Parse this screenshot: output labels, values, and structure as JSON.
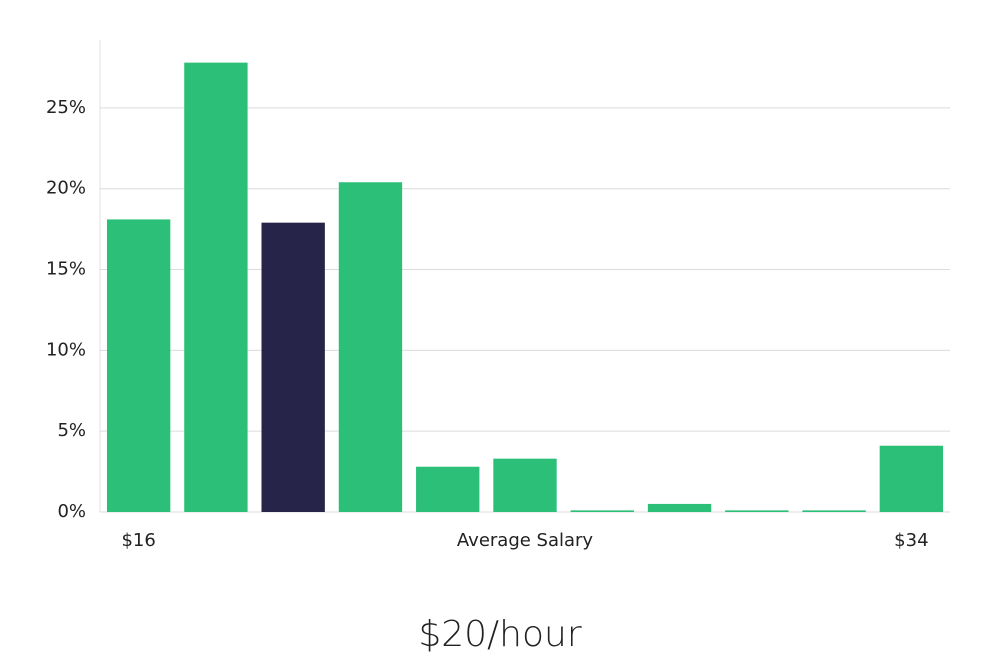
{
  "chart_data": {
    "type": "bar",
    "annotation": "$20/hour",
    "x_label": "Average Salary",
    "categories": [
      "$16",
      null,
      null,
      null,
      null,
      null,
      null,
      null,
      null,
      null,
      "$34"
    ],
    "values": [
      18.1,
      27.8,
      17.9,
      20.4,
      2.8,
      3.3,
      0.1,
      0.5,
      0.1,
      0.1,
      4.1
    ],
    "colors": [
      "#2bbf78",
      "#2bbf78",
      "#27244a",
      "#2bbf78",
      "#2bbf78",
      "#2bbf78",
      "#2bbf78",
      "#2bbf78",
      "#2bbf78",
      "#2bbf78",
      "#2bbf78"
    ],
    "ylim": [
      0,
      29.2
    ],
    "yticks": [
      {
        "value": 0,
        "label": "0%"
      },
      {
        "value": 5,
        "label": "5%"
      },
      {
        "value": 10,
        "label": "10%"
      },
      {
        "value": 15,
        "label": "15%"
      },
      {
        "value": 20,
        "label": "20%"
      },
      {
        "value": 25,
        "label": "25%"
      }
    ],
    "grid": true
  }
}
